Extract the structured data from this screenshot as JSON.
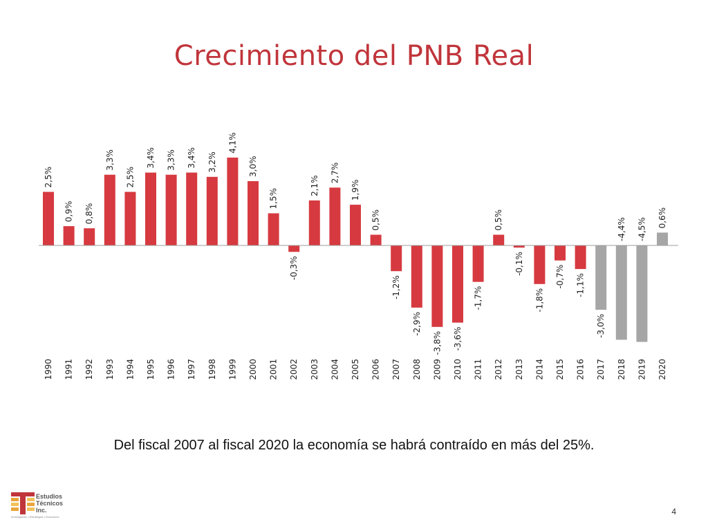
{
  "title": "Crecimiento del PNB Real",
  "caption": "Del fiscal 2007 al fiscal 2020 la economía se habrá contraído en más del 25%.",
  "page_number": "4",
  "logo": {
    "line1": "Estudios",
    "line2": "Técnicos",
    "line3": "Inc.",
    "tagline": "Investigación | Estrategias | Soluciones"
  },
  "colors": {
    "title": "#c0353b",
    "actual": "#d63a40",
    "projected": "#a6a6a6",
    "axis": "#9e9e9e"
  },
  "chart_data": {
    "type": "bar",
    "categories": [
      "1990",
      "1991",
      "1992",
      "1993",
      "1994",
      "1995",
      "1996",
      "1997",
      "1998",
      "1999",
      "2000",
      "2001",
      "2002",
      "2003",
      "2004",
      "2005",
      "2006",
      "2007",
      "2008",
      "2009",
      "2010",
      "2011",
      "2012",
      "2013",
      "2014",
      "2015",
      "2016",
      "2017",
      "2018",
      "2019",
      "2020"
    ],
    "values": [
      2.5,
      0.9,
      0.8,
      3.3,
      2.5,
      3.4,
      3.3,
      3.4,
      3.2,
      4.1,
      3.0,
      1.5,
      -0.3,
      2.1,
      2.7,
      1.9,
      0.5,
      -1.2,
      -2.9,
      -3.8,
      -3.6,
      -1.7,
      0.5,
      -0.1,
      -1.8,
      -0.7,
      -1.1,
      -3.0,
      -4.4,
      -4.5,
      0.6
    ],
    "labels": [
      "2,5%",
      "0,9%",
      "0,8%",
      "3,3%",
      "2,5%",
      "3,4%",
      "3,3%",
      "3,4%",
      "3,2%",
      "4,1%",
      "3,0%",
      "1,5%",
      "-0,3%",
      "2,1%",
      "2,7%",
      "1,9%",
      "0,5%",
      "-1,2%",
      "-2,9%",
      "-3,8%",
      "-3,6%",
      "-1,7%",
      "0,5%",
      "-0,1%",
      "-1,8%",
      "-0,7%",
      "-1,1%",
      "-3,0%",
      "-4,4%",
      "-4,5%",
      "0,6%"
    ],
    "projected": [
      false,
      false,
      false,
      false,
      false,
      false,
      false,
      false,
      false,
      false,
      false,
      false,
      false,
      false,
      false,
      false,
      false,
      false,
      false,
      false,
      false,
      false,
      false,
      false,
      false,
      false,
      false,
      true,
      true,
      true,
      true
    ],
    "xlabel": "",
    "ylabel": "",
    "grid": false
  }
}
